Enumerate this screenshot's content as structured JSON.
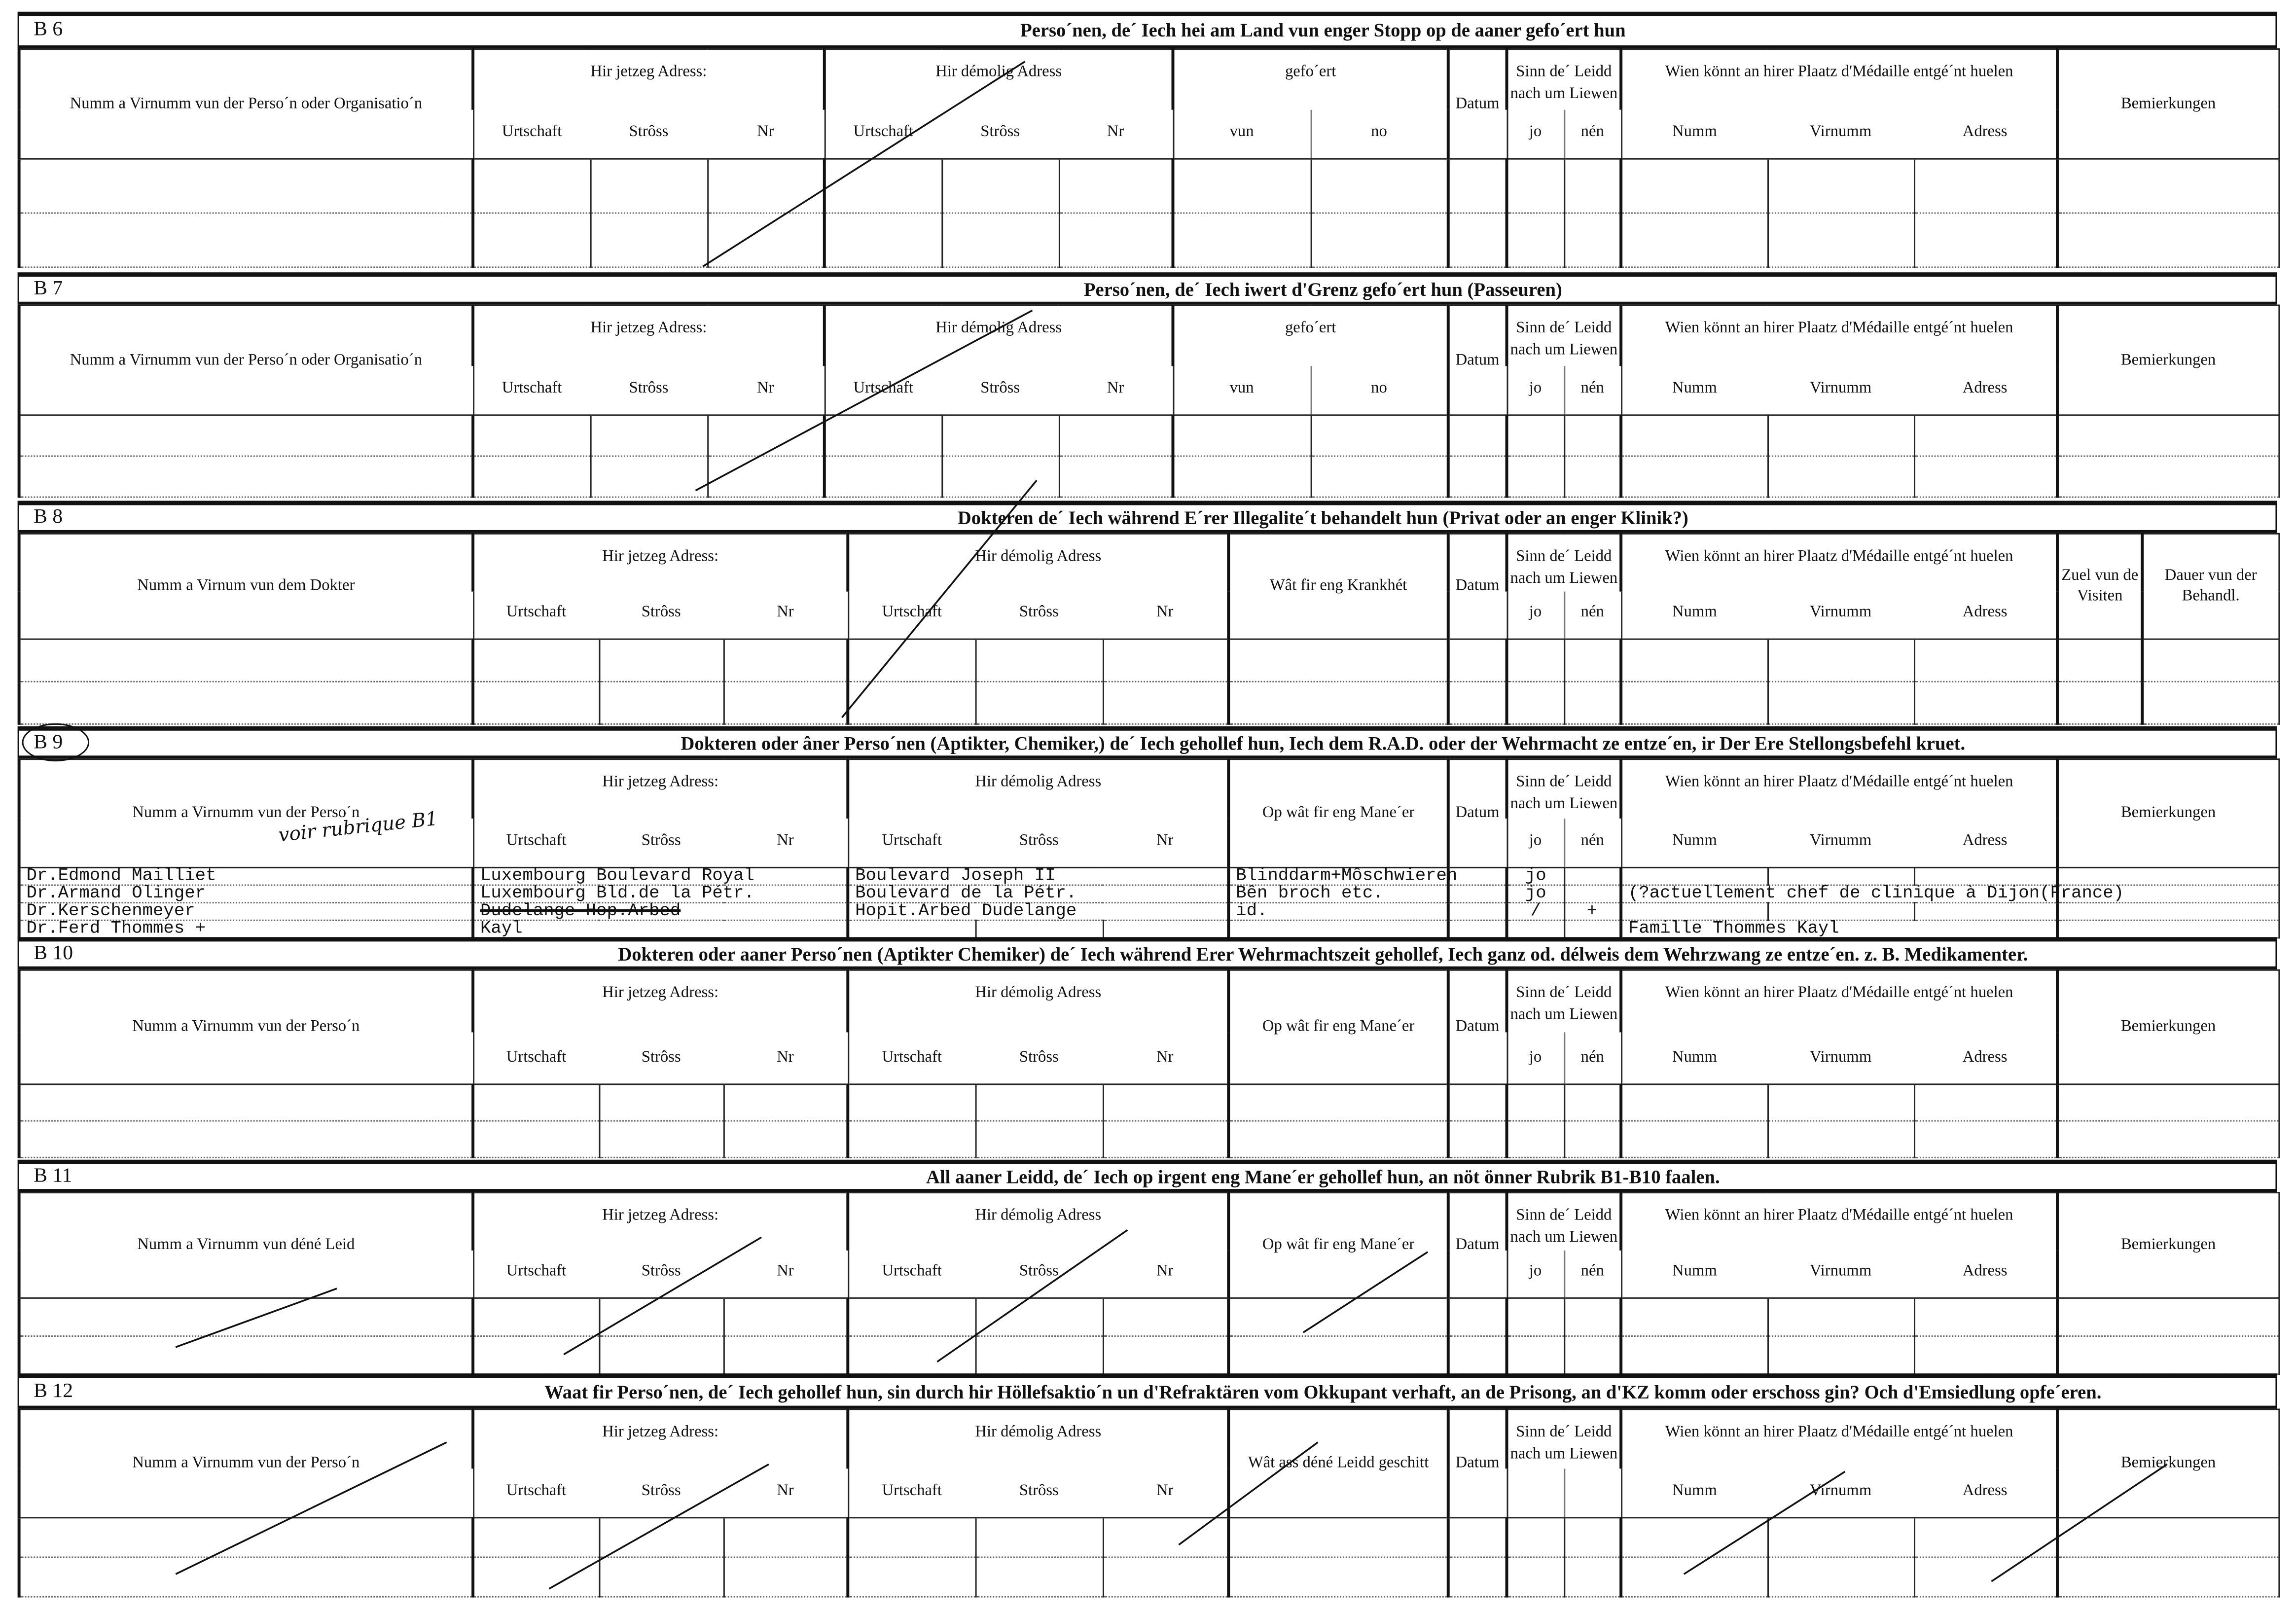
{
  "sections": [
    {
      "code": "B 6",
      "title": "Perso´nen, de´ Iech hei am Land vun enger Stopp op de aaner gefo´ert hun",
      "groups": [
        {
          "label": "Numm a Virnumm vun der Perso´n oder Organisatio´n",
          "subs": []
        },
        {
          "label": "Hir jetzeg Adress:",
          "subs": [
            "Urtschaft",
            "Strôss",
            "Nr"
          ]
        },
        {
          "label": "Hir démolig Adress",
          "subs": [
            "Urtschaft",
            "Strôss",
            "Nr"
          ]
        },
        {
          "label": "gefo´ert",
          "subs": [
            "vun",
            "no"
          ]
        },
        {
          "label": "Datum",
          "subs": []
        },
        {
          "label": "Sinn de´ Leidd nach um Liewen",
          "subs": [
            "jo",
            "nén"
          ]
        },
        {
          "label": "Wien könnt an hirer Plaatz d'Médaille entgé´nt huelen",
          "subs": [
            "Numm",
            "Virnumm",
            "Adress"
          ]
        },
        {
          "label": "Bemierkungen",
          "subs": []
        }
      ],
      "rows": [
        [],
        []
      ]
    },
    {
      "code": "B 7",
      "title": "Perso´nen, de´ Iech iwert d'Grenz gefo´ert hun (Passeuren)",
      "groups": [
        {
          "label": "Numm a Virnumm vun der Perso´n oder Organisatio´n",
          "subs": []
        },
        {
          "label": "Hir jetzeg Adress:",
          "subs": [
            "Urtschaft",
            "Strôss",
            "Nr"
          ]
        },
        {
          "label": "Hir démolig Adress",
          "subs": [
            "Urtschaft",
            "Strôss",
            "Nr"
          ]
        },
        {
          "label": "gefo´ert",
          "subs": [
            "vun",
            "no"
          ]
        },
        {
          "label": "Datum",
          "subs": []
        },
        {
          "label": "Sinn de´ Leidd nach um Liewen",
          "subs": [
            "jo",
            "nén"
          ]
        },
        {
          "label": "Wien könnt an hirer Plaatz d'Médaille entgé´nt huelen",
          "subs": [
            "Numm",
            "Virnumm",
            "Adress"
          ]
        },
        {
          "label": "Bemierkungen",
          "subs": []
        }
      ],
      "rows": [
        [],
        []
      ]
    },
    {
      "code": "B 8",
      "title": "Dokteren de´ Iech während E´rer Illegalite´t behandelt hun (Privat oder an enger Klinik?)",
      "groups": [
        {
          "label": "Numm a Virnum vun dem Dokter",
          "subs": []
        },
        {
          "label": "Hir jetzeg Adress:",
          "subs": [
            "Urtschaft",
            "Strôss",
            "Nr"
          ]
        },
        {
          "label": "Hir démolig Adress",
          "subs": [
            "Urtschaft",
            "Strôss",
            "Nr"
          ]
        },
        {
          "label": "Wât fir eng Krankhét",
          "subs": []
        },
        {
          "label": "Datum",
          "subs": []
        },
        {
          "label": "Sinn de´ Leidd nach um Liewen",
          "subs": [
            "jo",
            "nén"
          ]
        },
        {
          "label": "Wien könnt an hirer Plaatz d'Médaille entgé´nt huelen",
          "subs": [
            "Numm",
            "Virnumm",
            "Adress"
          ]
        },
        {
          "label": "Zuel vun de Visiten",
          "subs": []
        },
        {
          "label": "Dauer vun der Behandl.",
          "subs": []
        }
      ],
      "rows": [
        [],
        []
      ]
    },
    {
      "code": "B 9",
      "title": "Dokteren oder âner Perso´nen (Aptikter, Chemiker,) de´ Iech gehollef hun, Iech dem R.A.D. oder der Wehrmacht ze entze´en, ir Der Ere Stellongsbefehl kruet.",
      "handwritten_note": "voir rubrique B1",
      "groups": [
        {
          "label": "Numm a Virnumm vun der Perso´n",
          "subs": []
        },
        {
          "label": "Hir jetzeg Adress:",
          "subs": [
            "Urtschaft",
            "Strôss",
            "Nr"
          ]
        },
        {
          "label": "Hir démolig Adress",
          "subs": [
            "Urtschaft",
            "Strôss",
            "Nr"
          ]
        },
        {
          "label": "Op wât fir eng Mane´er",
          "subs": []
        },
        {
          "label": "Datum",
          "subs": []
        },
        {
          "label": "Sinn de´ Leidd nach um Liewen",
          "subs": [
            "jo",
            "nén"
          ]
        },
        {
          "label": "Wien könnt an hirer Plaatz d'Médaille entgé´nt huelen",
          "subs": [
            "Numm",
            "Virnumm",
            "Adress"
          ]
        },
        {
          "label": "Bemierkungen",
          "subs": []
        }
      ],
      "rows": [
        [
          "Dr.Edmond Mailliet",
          "Luxembourg Boulevard Royal",
          "Boulevard Joseph II",
          "Blinddarm+Môschwieren",
          "",
          [
            "jo",
            ""
          ],
          "",
          ""
        ],
        [
          "Dr.Armand Olinger",
          "Luxembourg Bld.de la Pétr.",
          "Boulevard de la Pétr.",
          "Bên broch etc.",
          "",
          [
            "jo",
            ""
          ],
          "(?actuellement chef de clinique à Dijon(France)",
          ""
        ],
        [
          "Dr.Kerschenmeyer",
          "Dudelange Hop.Arbed",
          "Hopit.Arbed Dudelange",
          "id.",
          "",
          [
            "/",
            "+"
          ],
          "",
          ""
        ],
        [
          "Dr.Ferd Thommes +",
          "Kayl",
          "",
          "",
          "",
          [
            "",
            ""
          ],
          "Famille Thommes Kayl",
          ""
        ]
      ],
      "struck_values": [
        "Dudelange Hop.Arbed"
      ]
    },
    {
      "code": "B 10",
      "title": "Dokteren oder aaner Perso´nen (Aptikter Chemiker) de´ Iech während Erer Wehrmachtszeit gehollef, Iech ganz od. délweis dem Wehrzwang ze entze´en. z. B. Medikamenter.",
      "groups": [
        {
          "label": "Numm a Virnumm vun der Perso´n",
          "subs": []
        },
        {
          "label": "Hir jetzeg Adress:",
          "subs": [
            "Urtschaft",
            "Strôss",
            "Nr"
          ]
        },
        {
          "label": "Hir démolig Adress",
          "subs": [
            "Urtschaft",
            "Strôss",
            "Nr"
          ]
        },
        {
          "label": "Op wât fir eng Mane´er",
          "subs": []
        },
        {
          "label": "Datum",
          "subs": []
        },
        {
          "label": "Sinn de´ Leidd nach um Liewen",
          "subs": [
            "jo",
            "nén"
          ]
        },
        {
          "label": "Wien könnt an hirer Plaatz d'Médaille entgé´nt huelen",
          "subs": [
            "Numm",
            "Virnumm",
            "Adress"
          ]
        },
        {
          "label": "Bemierkungen",
          "subs": []
        }
      ],
      "rows": [
        [],
        []
      ]
    },
    {
      "code": "B 11",
      "title": "All aaner Leidd, de´ Iech op irgent eng Mane´er gehollef hun, an nöt önner Rubrik B1-B10 faalen.",
      "groups": [
        {
          "label": "Numm a Virnumm vun déné Leid",
          "subs": []
        },
        {
          "label": "Hir jetzeg Adress:",
          "subs": [
            "Urtschaft",
            "Strôss",
            "Nr"
          ]
        },
        {
          "label": "Hir démolig Adress",
          "subs": [
            "Urtschaft",
            "Strôss",
            "Nr"
          ]
        },
        {
          "label": "Op wât fir eng Mane´er",
          "subs": []
        },
        {
          "label": "Datum",
          "subs": []
        },
        {
          "label": "Sinn de´ Leidd nach um Liewen",
          "subs": [
            "jo",
            "nén"
          ]
        },
        {
          "label": "Wien könnt an hirer Plaatz d'Médaille entgé´nt huelen",
          "subs": [
            "Numm",
            "Virnumm",
            "Adress"
          ]
        },
        {
          "label": "Bemierkungen",
          "subs": []
        }
      ],
      "rows": [
        [],
        []
      ]
    },
    {
      "code": "B 12",
      "title": "Waat fir Perso´nen, de´ Iech gehollef hun, sin durch hir Höllefsaktio´n un d'Refraktären vom Okkupant verhaft, an de Prisong, an d'KZ komm oder erschoss gin? Och d'Emsiedlung opfe´eren.",
      "groups": [
        {
          "label": "Numm a Virnumm vun der Perso´n",
          "subs": []
        },
        {
          "label": "Hir jetzeg Adress:",
          "subs": [
            "Urtschaft",
            "Strôss",
            "Nr"
          ]
        },
        {
          "label": "Hir démolig Adress",
          "subs": [
            "Urtschaft",
            "Strôss",
            "Nr"
          ]
        },
        {
          "label": "Wât ass déné Leidd geschitt",
          "subs": []
        },
        {
          "label": "Datum",
          "subs": []
        },
        {
          "label": "Sinn de´ Leidd nach um Liewen",
          "subs": [
            "",
            ""
          ]
        },
        {
          "label": "Wien könnt an hirer Plaatz d'Médaille entgé´nt huelen",
          "subs": [
            "Numm",
            "Virnumm",
            "Adress"
          ]
        },
        {
          "label": "Bemierkungen",
          "subs": []
        }
      ],
      "rows": [
        [],
        []
      ]
    }
  ]
}
